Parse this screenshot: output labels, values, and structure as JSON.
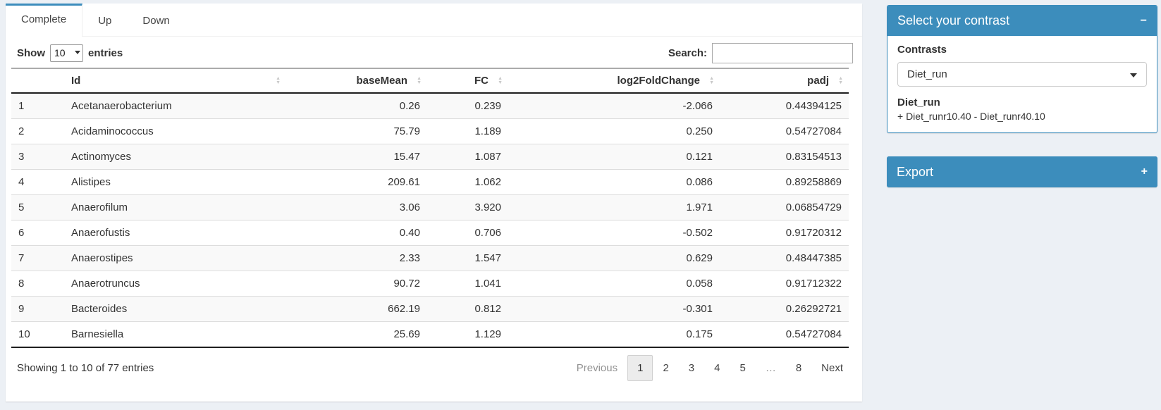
{
  "colors": {
    "primary": "#3c8dbc",
    "page_bg": "#ecf0f5"
  },
  "tabs": [
    {
      "label": "Complete",
      "active": true
    },
    {
      "label": "Up",
      "active": false
    },
    {
      "label": "Down",
      "active": false
    }
  ],
  "table_controls": {
    "show_label": "Show",
    "page_length": "10",
    "entries_label": "entries",
    "search_label": "Search:",
    "search_value": ""
  },
  "table": {
    "columns": [
      {
        "key": "n",
        "label": "",
        "align": "left",
        "sortable": false
      },
      {
        "key": "id",
        "label": "Id",
        "align": "left",
        "sortable": true
      },
      {
        "key": "baseMean",
        "label": "baseMean",
        "align": "right",
        "sortable": true
      },
      {
        "key": "fc",
        "label": "FC",
        "align": "right",
        "sortable": true
      },
      {
        "key": "log2fc",
        "label": "log2FoldChange",
        "align": "right",
        "sortable": true
      },
      {
        "key": "padj",
        "label": "padj",
        "align": "right",
        "sortable": true
      }
    ],
    "rows": [
      {
        "n": "1",
        "id": "Acetanaerobacterium",
        "baseMean": "0.26",
        "fc": "0.239",
        "log2fc": "-2.066",
        "padj": "0.44394125"
      },
      {
        "n": "2",
        "id": "Acidaminococcus",
        "baseMean": "75.79",
        "fc": "1.189",
        "log2fc": "0.250",
        "padj": "0.54727084"
      },
      {
        "n": "3",
        "id": "Actinomyces",
        "baseMean": "15.47",
        "fc": "1.087",
        "log2fc": "0.121",
        "padj": "0.83154513"
      },
      {
        "n": "4",
        "id": "Alistipes",
        "baseMean": "209.61",
        "fc": "1.062",
        "log2fc": "0.086",
        "padj": "0.89258869"
      },
      {
        "n": "5",
        "id": "Anaerofilum",
        "baseMean": "3.06",
        "fc": "3.920",
        "log2fc": "1.971",
        "padj": "0.06854729"
      },
      {
        "n": "6",
        "id": "Anaerofustis",
        "baseMean": "0.40",
        "fc": "0.706",
        "log2fc": "-0.502",
        "padj": "0.91720312"
      },
      {
        "n": "7",
        "id": "Anaerostipes",
        "baseMean": "2.33",
        "fc": "1.547",
        "log2fc": "0.629",
        "padj": "0.48447385"
      },
      {
        "n": "8",
        "id": "Anaerotruncus",
        "baseMean": "90.72",
        "fc": "1.041",
        "log2fc": "0.058",
        "padj": "0.91712322"
      },
      {
        "n": "9",
        "id": "Bacteroides",
        "baseMean": "662.19",
        "fc": "0.812",
        "log2fc": "-0.301",
        "padj": "0.26292721"
      },
      {
        "n": "10",
        "id": "Barnesiella",
        "baseMean": "25.69",
        "fc": "1.129",
        "log2fc": "0.175",
        "padj": "0.54727084"
      }
    ]
  },
  "pagination": {
    "info": "Showing 1 to 10 of 77 entries",
    "previous_label": "Previous",
    "pages": [
      "1",
      "2",
      "3",
      "4",
      "5",
      "…",
      "8"
    ],
    "active_page": "1",
    "next_label": "Next"
  },
  "contrast_box": {
    "title": "Select your contrast",
    "collapse_icon": "−",
    "contrasts_label": "Contrasts",
    "selected_contrast": "Diet_run",
    "contrast_name": "Diet_run",
    "contrast_formula": "+ Diet_runr10.40 - Diet_runr40.10"
  },
  "export_box": {
    "title": "Export",
    "expand_icon": "+"
  }
}
